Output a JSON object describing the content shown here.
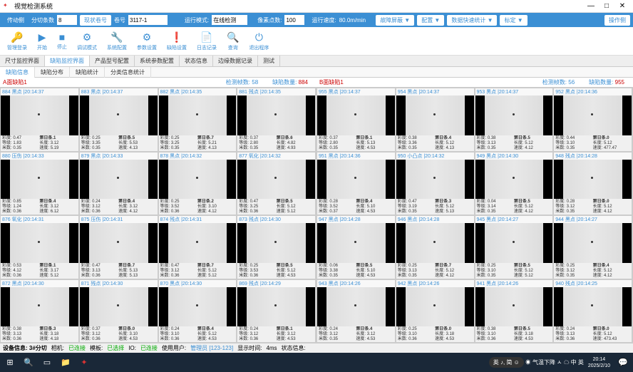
{
  "window": {
    "title": "视觉检测系统"
  },
  "topbar": {
    "tab1": "传动侧",
    "tab2": "分切条数",
    "slitCount": "8",
    "rollBtn": "现状卷号",
    "rollLabel": "卷号",
    "rollValue": "3117-1",
    "modeLabel": "运行模式:",
    "modeValue": "在线检测",
    "pxLabel": "像素点数:",
    "pxValue": "100",
    "speedLabel": "运行速度:",
    "speedValue": "80.0m/min",
    "btn1": "故障屏蔽 ▼",
    "btn2": "配置 ▼",
    "btn3": "数据快速统计 ▼",
    "btn4": "标定 ▼",
    "rightBtn": "操作侧"
  },
  "toolbar": [
    {
      "l": "管理登录"
    },
    {
      "l": "开始"
    },
    {
      "l": "停止"
    },
    {
      "l": "调试模式"
    },
    {
      "l": "系统配置"
    },
    {
      "l": "参数设置"
    },
    {
      "l": "缺陷设置"
    },
    {
      "l": "日志记录"
    },
    {
      "l": "查询"
    },
    {
      "l": "退出程序"
    }
  ],
  "tabs2": [
    "尺寸监控界面",
    "缺陷监控界面",
    "产品型号配置",
    "系统参数配置",
    "状态信息",
    "边缘数据记录",
    "测试"
  ],
  "tabs2_active": 1,
  "tabs3": [
    "缺陷信息",
    "缺陷分布",
    "缺陷统计",
    "分类信息统计"
  ],
  "tabs3_active": 0,
  "panels": {
    "A": {
      "name": "A面缺陷1",
      "statL": "检测帧数:",
      "statLV": "58",
      "statR": "缺陷数量:",
      "statRV": "884"
    },
    "B": {
      "name": "B面缺陷1",
      "statL": "检测帧数:",
      "statLV": "56",
      "statR": "缺陷数量:",
      "statRV": "955"
    }
  },
  "cellsA": [
    {
      "h": "884 黑点 |20:14:37",
      "r1": "彩度: 0.47",
      "r2": "等级: 1.83",
      "r3": "米数: 0.35",
      "b": "第日条.1",
      "s1": "长度: 3.12",
      "s2": "速度: 5.19"
    },
    {
      "h": "883 黑点 |20:14:37",
      "r1": "彩度: 0.25",
      "r2": "等级: 3.35",
      "r3": "米数: 0.35",
      "b": "第日条.5",
      "s1": "长度: 5.53",
      "s2": "速度: 4.13"
    },
    {
      "h": "882 黑点 |20:14:35",
      "r1": "彩度: 0.25",
      "r2": "等级: 3.25",
      "r3": "米数: 0.35",
      "b": "第日条.7",
      "s1": "长度: 5.21",
      "s2": "速度: 4.13"
    },
    {
      "h": "881 残点 |20:14:35",
      "r1": "彩度: 0.37",
      "r2": "等级: 2.80",
      "r3": "米数: 0.35",
      "b": "第日条.6",
      "s1": "长度: 4.82",
      "s2": "速度: 4.93"
    },
    {
      "h": "880 压伤 |20:14:33",
      "r1": "彩度: 0.85",
      "r2": "等级: 1.24",
      "r3": "米数: 0.36",
      "b": "第日条.4",
      "s1": "长度: 3.12",
      "s2": "速度: 6.12"
    },
    {
      "h": "879 黑点 |20:14:33",
      "r1": "彩度: 0.24",
      "r2": "等级: 3.12",
      "r3": "米数: 0.36",
      "b": "第日条.4",
      "s1": "长度: 3.12",
      "s2": "速度: 4.12"
    },
    {
      "h": "878 黑点 |20:14:32",
      "r1": "彩度: 0.25",
      "r2": "等级: 3.52",
      "r3": "米数: 0.36",
      "b": "第日条.2",
      "s1": "长度: 3.10",
      "s2": "速度: 4.12"
    },
    {
      "h": "877 氧化 |20:14:32",
      "r1": "彩度: 0.47",
      "r2": "等级: 3.25",
      "r3": "米数: 0.36",
      "b": "第日条.5",
      "s1": "长度: 5.12",
      "s2": "速度: 5.12"
    },
    {
      "h": "876 氧化 |20:14:31",
      "r1": "彩度: 0.53",
      "r2": "等级: 4.12",
      "r3": "米数: 0.36",
      "b": "第日条.1",
      "s1": "长度: 3.17",
      "s2": "速度: 5.12"
    },
    {
      "h": "875 压伤 |20:14:31",
      "r1": "彩度: 0.47",
      "r2": "等级: 3.13",
      "r3": "米数: 0.36",
      "b": "第日条.7",
      "s1": "长度: 5.13",
      "s2": "速度: 5.13"
    },
    {
      "h": "874 残点 |20:14:31",
      "r1": "彩度: 0.47",
      "r2": "等级: 3.12",
      "r3": "米数: 0.36",
      "b": "第日条.7",
      "s1": "长度: 5.12",
      "s2": "速度: 5.12"
    },
    {
      "h": "873 残点 |20:14:30",
      "r1": "彩度: 0.25",
      "r2": "等级: 3.53",
      "r3": "米数: 0.36",
      "b": "第日条.5",
      "s1": "长度: 5.12",
      "s2": "速度: 4.53"
    },
    {
      "h": "872 黑点 |20:14:30",
      "r1": "彩度: 0.38",
      "r2": "等级: 3.13",
      "r3": "米数: 0.36",
      "b": "第日条.3",
      "s1": "长度: 3.18",
      "s2": "速度: 4.18"
    },
    {
      "h": "871 残点 |20:14:30",
      "r1": "彩度: 0.37",
      "r2": "等级: 3.12",
      "r3": "米数: 0.36",
      "b": "第日条.0",
      "s1": "长度: 3.10",
      "s2": "速度: 4.53"
    },
    {
      "h": "870 黑点 |20:14:30",
      "r1": "彩度: 0.24",
      "r2": "等级: 3.10",
      "r3": "米数: 0.36",
      "b": "第日条.4",
      "s1": "长度: 5.12",
      "s2": "速度: 4.53"
    },
    {
      "h": "869 残点 |20:14:29",
      "r1": "彩度: 0.24",
      "r2": "等级: 3.12",
      "r3": "米数: 0.36",
      "b": "第日条.1",
      "s1": "长度: 3.12",
      "s2": "速度: 4.53"
    }
  ],
  "cellsB": [
    {
      "h": "955 黑点 |20:14:37",
      "r1": "彩度: 0.37",
      "r2": "等级: 2.80",
      "r3": "米数: 0.35",
      "b": "第日条.1",
      "s1": "长度: 5.13",
      "s2": "速度: 4.53"
    },
    {
      "h": "954 黑点 |20:14:37",
      "r1": "彩度: 0.38",
      "r2": "等级: 3.36",
      "r3": "米数: 0.35",
      "b": "第日条.4",
      "s1": "长度: 5.12",
      "s2": "速度: 4.13"
    },
    {
      "h": "953 黑点 |20:14:37",
      "r1": "彩度: 0.38",
      "r2": "等级: 3.13",
      "r3": "米数: 0.35",
      "b": "第日条.5",
      "s1": "长度: 5.12",
      "s2": "速度: 4.12"
    },
    {
      "h": "952 黑点 |20:14:36",
      "r1": "彩度: 0.44",
      "r2": "等级: 3.10",
      "r3": "米数: 0.35",
      "b": "第日条.0",
      "s1": "长度: 5.12",
      "s2": "速度: 477.47"
    },
    {
      "h": "951 黑点 |20:14:36",
      "r1": "彩度: 0.28",
      "r2": "等级: 3.52",
      "r3": "米数: 0.37",
      "b": "第日条.4",
      "s1": "长度: 5.10",
      "s2": "速度: 4.53"
    },
    {
      "h": "950 小凸点 |20:14:32",
      "r1": "彩度: 0.47",
      "r2": "等级: 3.19",
      "r3": "米数: 0.35",
      "b": "第日条.3",
      "s1": "长度: 5.12",
      "s2": "速度: 5.13"
    },
    {
      "h": "949 黑点 |20:14:30",
      "r1": "彩度: 0.04",
      "r2": "等级: 3.14",
      "r3": "米数: 0.35",
      "b": "第日条.5",
      "s1": "长度: 5.12",
      "s2": "速度: 4.12"
    },
    {
      "h": "948 残点 |20:14:28",
      "r1": "彩度: 0.28",
      "r2": "等级: 3.12",
      "r3": "米数: 0.35",
      "b": "第日条.0",
      "s1": "长度: 5.12",
      "s2": "速度: 4.12"
    },
    {
      "h": "947 黑点 |20:14:28",
      "r1": "彩度: 0.06",
      "r2": "等级: 3.38",
      "r3": "米数: 0.35",
      "b": "第日条.5",
      "s1": "长度: 5.10",
      "s2": "速度: 4.53"
    },
    {
      "h": "946 黑点 |20:14:28",
      "r1": "彩度: 0.25",
      "r2": "等级: 3.13",
      "r3": "米数: 0.35",
      "b": "第日条.7",
      "s1": "长度: 5.12",
      "s2": "速度: 4.12"
    },
    {
      "h": "945 黑点 |20:14:27",
      "r1": "彩度: 0.25",
      "r2": "等级: 3.10",
      "r3": "米数: 0.35",
      "b": "第日条.5",
      "s1": "长度: 5.12",
      "s2": "速度: 5.12"
    },
    {
      "h": "944 黑点 |20:14:27",
      "r1": "彩度: 0.25",
      "r2": "等级: 3.12",
      "r3": "米数: 0.35",
      "b": "第日条.4",
      "s1": "长度: 5.12",
      "s2": "速度: 4.12"
    },
    {
      "h": "943 黑点 |20:14:26",
      "r1": "彩度: 0.24",
      "r2": "等级: 3.12",
      "r3": "米数: 0.35",
      "b": "第日条.4",
      "s1": "长度: 3.12",
      "s2": "速度: 4.53"
    },
    {
      "h": "942 黑点 |20:14:26",
      "r1": "彩度: 0.25",
      "r2": "等级: 3.10",
      "r3": "米数: 0.36",
      "b": "第日条.0",
      "s1": "长度: 3.18",
      "s2": "速度: 4.53"
    },
    {
      "h": "941 黑点 |20:14:26",
      "r1": "彩度: 0.38",
      "r2": "等级: 3.10",
      "r3": "米数: 0.36",
      "b": "第日条.5",
      "s1": "长度: 3.18",
      "s2": "速度: 4.53"
    },
    {
      "h": "940 残点 |20:14:25",
      "r1": "彩度: 0.24",
      "r2": "等级: 3.13",
      "r3": "米数: 0.36",
      "b": "第日条.0",
      "s1": "长度: 5.12",
      "s2": "速度: 473.43"
    }
  ],
  "status": {
    "dev": "设备信息: 3#分切",
    "cam": "相机:",
    "camV": "已连接",
    "tpl": "模板:",
    "tplV": "已选择",
    "io": "IO:",
    "ioV": "已连接",
    "user": "使用用户:",
    "userV": "管理员 [123-123]",
    "delay": "显示时间:",
    "delayV": "4ms",
    "st": "状态信息:"
  },
  "taskbar": {
    "weather": "气温下降",
    "lang": "中 英",
    "ime": "英 ♪, 简 ☺",
    "time": "20:14",
    "date": "2025/2/10"
  }
}
